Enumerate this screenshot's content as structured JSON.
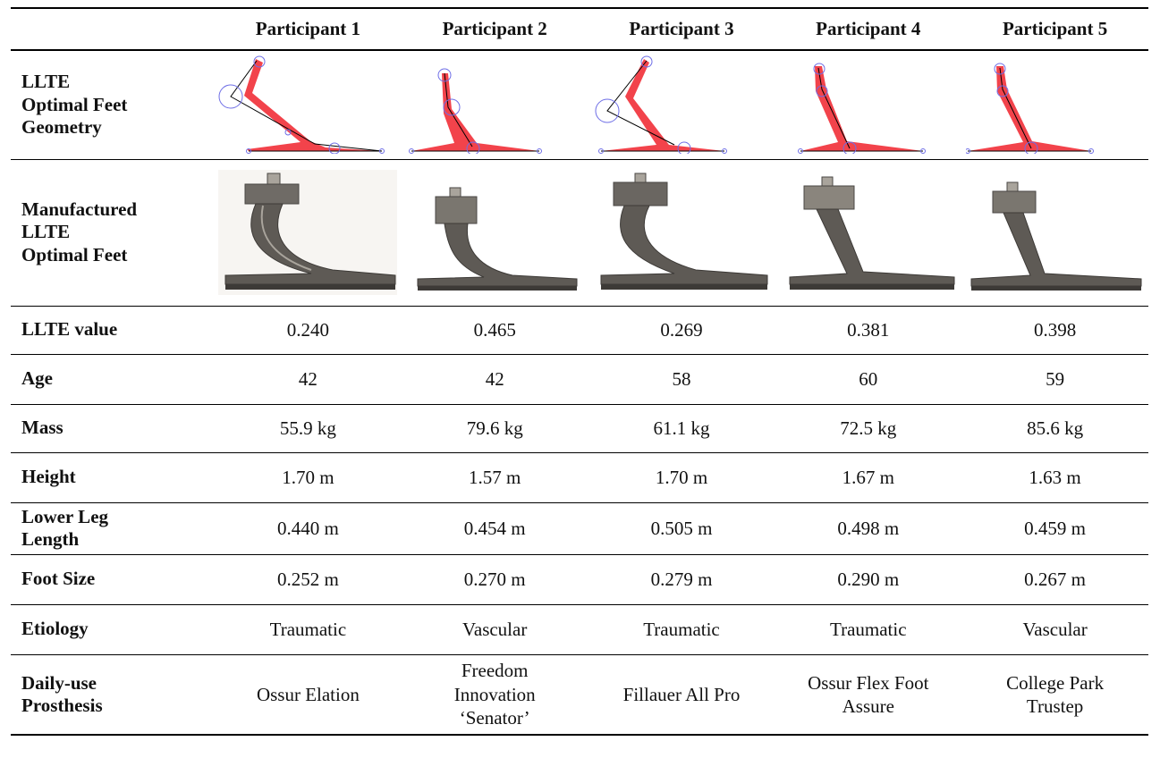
{
  "header": {
    "corner": "",
    "participants": [
      "Participant 1",
      "Participant 2",
      "Participant 3",
      "Participant 4",
      "Participant 5"
    ]
  },
  "rows": {
    "geometry": {
      "label": "LLTE\nOptimal Feet\nGeometry"
    },
    "manufactured": {
      "label": "Manufactured\nLLTE\nOptimal Feet"
    },
    "llte_value": {
      "label": "LLTE value",
      "values": [
        "0.240",
        "0.465",
        "0.269",
        "0.381",
        "0.398"
      ]
    },
    "age": {
      "label": "Age",
      "values": [
        "42",
        "42",
        "58",
        "60",
        "59"
      ]
    },
    "mass": {
      "label": "Mass",
      "values": [
        "55.9 kg",
        "79.6 kg",
        "61.1 kg",
        "72.5 kg",
        "85.6 kg"
      ]
    },
    "height": {
      "label": "Height",
      "values": [
        "1.70 m",
        "1.57 m",
        "1.70 m",
        "1.67 m",
        "1.63 m"
      ]
    },
    "lower_leg": {
      "label": "Lower Leg\nLength",
      "values": [
        "0.440 m",
        "0.454 m",
        "0.505 m",
        "0.498 m",
        "0.459 m"
      ]
    },
    "foot_size": {
      "label": "Foot Size",
      "values": [
        "0.252 m",
        "0.270 m",
        "0.279 m",
        "0.290 m",
        "0.267 m"
      ]
    },
    "etiology": {
      "label": "Etiology",
      "values": [
        "Traumatic",
        "Vascular",
        "Traumatic",
        "Traumatic",
        "Vascular"
      ]
    },
    "daily_use": {
      "label": "Daily-use\nProsthesis",
      "values": [
        "Ossur Elation",
        "Freedom\nInnovation\n‘Senator’",
        "Fillauer All Pro",
        "Ossur Flex Foot\nAssure",
        "College Park\nTrustep"
      ]
    }
  },
  "colors": {
    "geometry_fill": "#f2434b",
    "control_circle": "#6e6ee6",
    "metal_dark": "#4a4744",
    "metal_light": "#a9a49c"
  }
}
